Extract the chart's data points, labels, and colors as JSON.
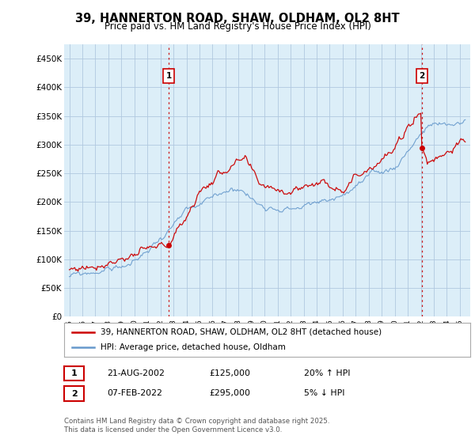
{
  "title": "39, HANNERTON ROAD, SHAW, OLDHAM, OL2 8HT",
  "subtitle": "Price paid vs. HM Land Registry's House Price Index (HPI)",
  "legend_label_red": "39, HANNERTON ROAD, SHAW, OLDHAM, OL2 8HT (detached house)",
  "legend_label_blue": "HPI: Average price, detached house, Oldham",
  "annotation1_date": "21-AUG-2002",
  "annotation1_price": "£125,000",
  "annotation1_hpi": "20% ↑ HPI",
  "annotation2_date": "07-FEB-2022",
  "annotation2_price": "£295,000",
  "annotation2_hpi": "5% ↓ HPI",
  "footer": "Contains HM Land Registry data © Crown copyright and database right 2025.\nThis data is licensed under the Open Government Licence v3.0.",
  "ylim": [
    0,
    475000
  ],
  "yticks": [
    0,
    50000,
    100000,
    150000,
    200000,
    250000,
    300000,
    350000,
    400000,
    450000
  ],
  "ytick_labels": [
    "£0",
    "£50K",
    "£100K",
    "£150K",
    "£200K",
    "£250K",
    "£300K",
    "£350K",
    "£400K",
    "£450K"
  ],
  "bg_color": "#ffffff",
  "chart_bg_color": "#dceef8",
  "grid_color": "#b0c8e0",
  "red_color": "#cc0000",
  "blue_color": "#6699cc",
  "annotation_border_color": "#cc0000",
  "vline_color": "#cc0000",
  "sale1_year": 2002.6333,
  "sale2_year": 2022.0833,
  "sale1_value": 125000,
  "sale2_value": 295000
}
